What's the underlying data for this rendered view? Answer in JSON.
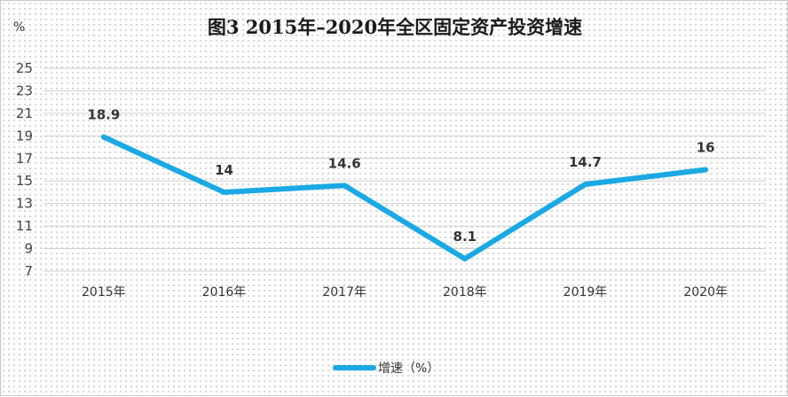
{
  "chart_data": {
    "type": "line",
    "title": "图3   2015年–2020年全区固定资产投资增速",
    "ylabel": "%",
    "categories": [
      "2015年",
      "2016年",
      "2017年",
      "2018年",
      "2019年",
      "2020年"
    ],
    "series": [
      {
        "name": "增速（%）",
        "values": [
          18.9,
          14,
          14.6,
          8.1,
          14.7,
          16
        ],
        "labels": [
          "18.9",
          "14",
          "14.6",
          "8.1",
          "14.7",
          "16"
        ],
        "color": "#1aa9e4"
      }
    ],
    "yticks": [
      "7",
      "9",
      "11",
      "13",
      "15",
      "17",
      "19",
      "21",
      "23",
      "25"
    ],
    "ylim": [
      7,
      25
    ],
    "grid": true,
    "legend": "bottom-center"
  }
}
